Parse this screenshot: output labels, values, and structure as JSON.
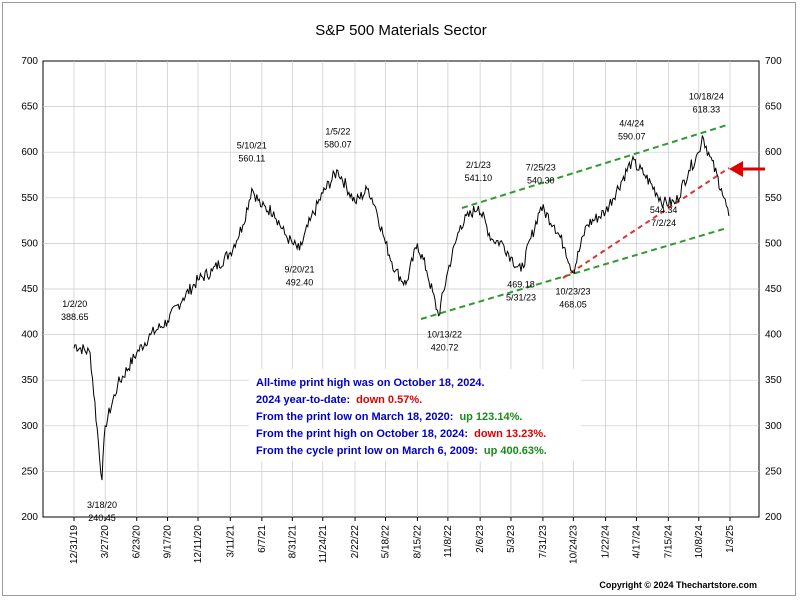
{
  "chart_data": {
    "type": "line",
    "title": "S&P 500 Materials Sector",
    "xlabel": "",
    "ylabel": "",
    "ylim": [
      200,
      700
    ],
    "yticks": [
      200,
      250,
      300,
      350,
      400,
      450,
      500,
      550,
      600,
      650,
      700
    ],
    "grid": true,
    "x_tick_labels": [
      "12/31/19",
      "3/27/20",
      "6/23/20",
      "9/17/20",
      "12/11/20",
      "3/11/21",
      "6/7/21",
      "8/31/21",
      "11/24/21",
      "2/22/22",
      "5/18/22",
      "8/15/22",
      "11/8/22",
      "2/6/23",
      "5/3/23",
      "7/31/23",
      "10/24/23",
      "1/22/24",
      "4/17/24",
      "7/15/24",
      "10/8/24",
      "1/3/25"
    ],
    "series": [
      {
        "x": [
          "12/31/19",
          "1/2/20",
          "2/14/20",
          "3/18/20",
          "3/27/20",
          "5/1/20",
          "6/23/20",
          "8/1/20",
          "9/17/20",
          "10/30/20",
          "12/11/20",
          "1/20/21",
          "3/11/21",
          "4/15/21",
          "5/10/21",
          "6/7/21",
          "7/10/21",
          "8/10/21",
          "8/31/21",
          "9/20/21",
          "10/20/21",
          "11/24/21",
          "1/5/22",
          "2/22/22",
          "3/31/22",
          "4/20/22",
          "5/18/22",
          "6/15/22",
          "7/14/22",
          "8/15/22",
          "9/10/22",
          "10/13/22",
          "11/8/22",
          "12/13/22",
          "2/1/23",
          "3/10/23",
          "4/10/23",
          "5/3/23",
          "5/31/23",
          "7/25/23",
          "9/1/23",
          "10/1/23",
          "10/23/23",
          "11/30/23",
          "1/22/24",
          "4/4/24",
          "5/10/24",
          "7/2/24",
          "8/5/24",
          "9/10/24",
          "10/8/24",
          "10/18/24",
          "11/8/24",
          "12/10/24",
          "12/31/24"
        ],
        "y": [
          385,
          388.65,
          380,
          240.45,
          300,
          345,
          380,
          400,
          415,
          440,
          460,
          470,
          490,
          520,
          560.11,
          540,
          535,
          510,
          500,
          492.4,
          525,
          555,
          580.07,
          545,
          560,
          540,
          500,
          470,
          455,
          500,
          470,
          420.72,
          470,
          520,
          541.1,
          505,
          500,
          485,
          469.18,
          540.3,
          520,
          495,
          468.05,
          520,
          535,
          590.07,
          575,
          544.34,
          545,
          580,
          600,
          618.33,
          595,
          560,
          530
        ]
      }
    ],
    "annotations": [
      {
        "date": "1/2/20",
        "value": "388.65"
      },
      {
        "date": "3/18/20",
        "value": "240.45"
      },
      {
        "date": "5/10/21",
        "value": "560.11"
      },
      {
        "date": "9/20/21",
        "value": "492.40"
      },
      {
        "date": "1/5/22",
        "value": "580.07"
      },
      {
        "date": "10/13/22",
        "value": "420.72"
      },
      {
        "date": "2/1/23",
        "value": "541.10"
      },
      {
        "date": "5/31/23",
        "value": "469.18"
      },
      {
        "date": "7/25/23",
        "value": "540.30"
      },
      {
        "date": "10/23/23",
        "value": "468.05"
      },
      {
        "date": "4/4/24",
        "value": "590.07"
      },
      {
        "date": "7/2/24",
        "value": "544.34"
      },
      {
        "date": "10/18/24",
        "value": "618.33"
      }
    ],
    "info_box": {
      "line1": "All-time print high was on October 18, 2024.",
      "line2_label": "2024 year-to-date:",
      "line2_value": "down 0.57%.",
      "line3_label": "From the print low on March 18, 2020:",
      "line3_value": "up 123.14%.",
      "line4_label": "From the print high on October 18, 2024:",
      "line4_value": "down 13.23%.",
      "line5_label": "From the cycle print low on March 6, 2009:",
      "line5_value": "up 400.63%."
    },
    "copyright": "Copyright © 2024 Thechartstore.com",
    "colors": {
      "price": "#000000",
      "upper_channel": "#2e9b2e",
      "lower_channel": "#2e9b2e",
      "trendline": "#e03030",
      "arrow": "#e00000",
      "info_blue": "#0000cc",
      "info_red": "#e00000",
      "info_green": "#1a8a1a"
    }
  }
}
